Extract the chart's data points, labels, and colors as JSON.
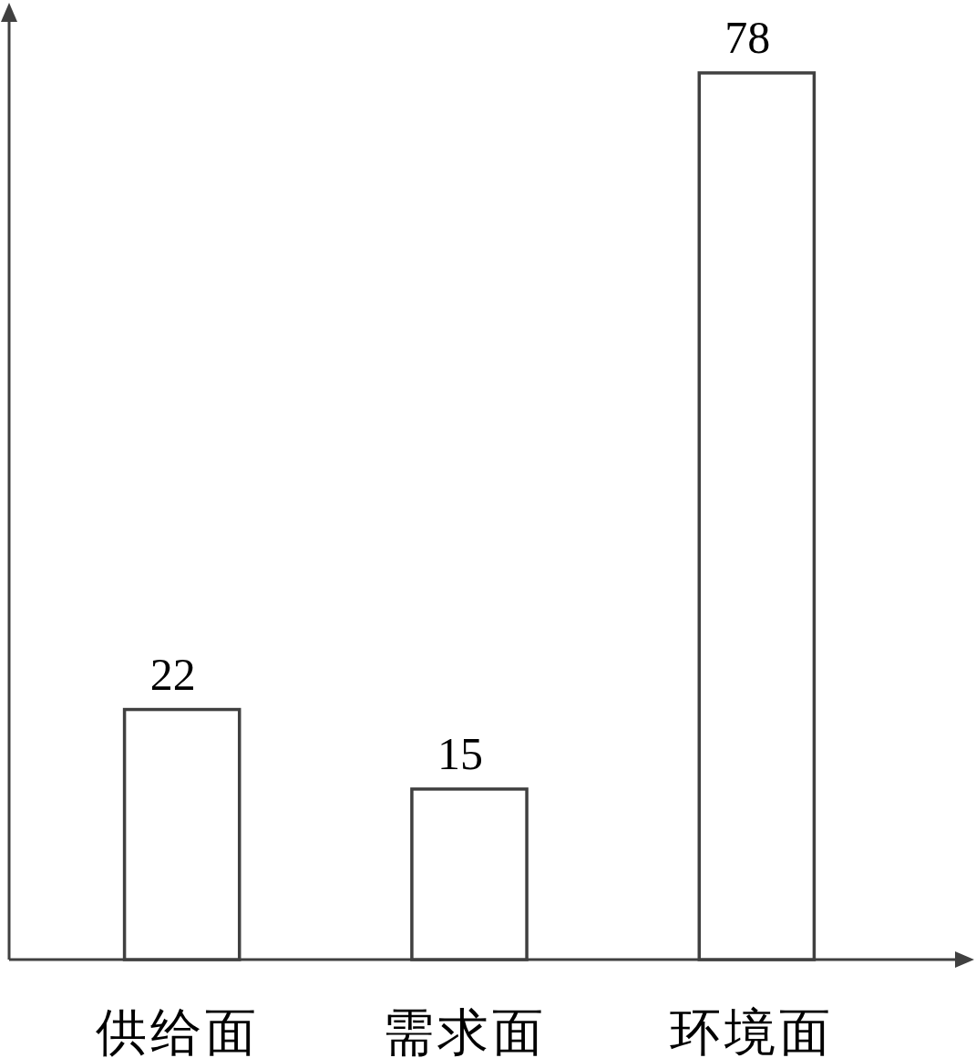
{
  "chart_data": {
    "type": "bar",
    "categories": [
      "供给面",
      "需求面",
      "环境面"
    ],
    "values": [
      22,
      15,
      78
    ],
    "color": "#404040",
    "data_labels": true
  }
}
